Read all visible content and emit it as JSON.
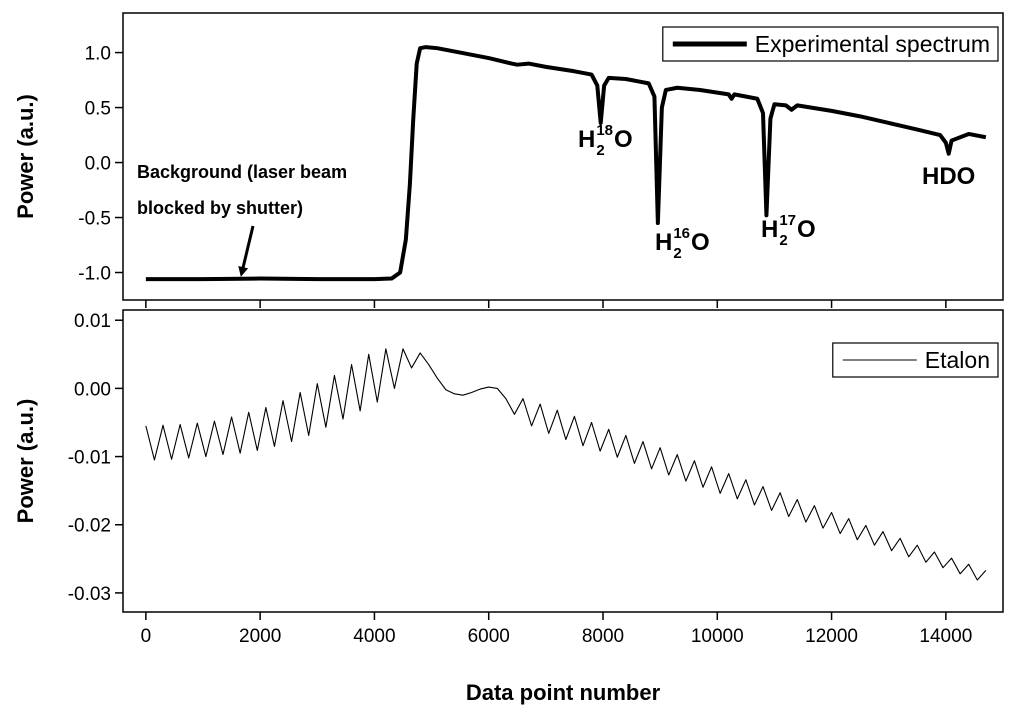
{
  "chart_data": [
    {
      "type": "line",
      "ylabel": "Power (a.u.)",
      "x": [
        0,
        1000,
        2000,
        3000,
        4000,
        4300,
        4450,
        4550,
        4620,
        4680,
        4740,
        4800,
        4900,
        5100,
        5500,
        6000,
        6400,
        6500,
        6700,
        7000,
        7500,
        7800,
        7900,
        7960,
        8020,
        8100,
        8400,
        8800,
        8900,
        8960,
        9030,
        9100,
        9300,
        9700,
        10200,
        10250,
        10300,
        10700,
        10800,
        10860,
        10930,
        11000,
        11200,
        11300,
        11400,
        12000,
        12500,
        13000,
        13500,
        13900,
        14000,
        14050,
        14100,
        14400,
        14700
      ],
      "series": [
        {
          "name": "Experimental spectrum",
          "color": "#000000",
          "values": [
            -1.06,
            -1.06,
            -1.055,
            -1.06,
            -1.06,
            -1.055,
            -1.0,
            -0.7,
            -0.2,
            0.4,
            0.9,
            1.04,
            1.05,
            1.04,
            1.0,
            0.95,
            0.9,
            0.89,
            0.9,
            0.87,
            0.83,
            0.8,
            0.7,
            0.36,
            0.7,
            0.77,
            0.76,
            0.72,
            0.6,
            -0.55,
            0.5,
            0.66,
            0.68,
            0.66,
            0.62,
            0.58,
            0.62,
            0.58,
            0.45,
            -0.48,
            0.4,
            0.53,
            0.52,
            0.48,
            0.52,
            0.47,
            0.42,
            0.36,
            0.3,
            0.25,
            0.18,
            0.08,
            0.2,
            0.26,
            0.23
          ]
        }
      ],
      "xlim": [
        -400,
        15000
      ],
      "ylim": [
        -1.25,
        1.36
      ],
      "yticks": [
        {
          "value": -1.0,
          "label": "-1.0"
        },
        -0.5,
        {
          "value": 0,
          "label": "0.0"
        },
        0.5,
        {
          "value": 1.0,
          "label": "1.0"
        }
      ],
      "legend": "upper right",
      "annotations": [
        {
          "lines": [
            "Background (laser beam",
            "blocked by shutter)"
          ]
        },
        {
          "parts": [
            "H",
            "2",
            "18",
            "O"
          ]
        },
        {
          "parts": [
            "H",
            "2",
            "16",
            "O"
          ]
        },
        {
          "parts": [
            "H",
            "2",
            "17",
            "O"
          ]
        },
        {
          "parts": [
            "HDO"
          ]
        }
      ]
    },
    {
      "type": "line",
      "ylabel": "Power (a.u.)",
      "xlabel": "Data point number",
      "x": [
        0,
        150,
        300,
        450,
        600,
        750,
        900,
        1050,
        1200,
        1350,
        1500,
        1650,
        1800,
        1950,
        2100,
        2250,
        2400,
        2550,
        2700,
        2850,
        3000,
        3150,
        3300,
        3450,
        3600,
        3750,
        3900,
        4050,
        4200,
        4350,
        4500,
        4650,
        4800,
        4950,
        5100,
        5250,
        5400,
        5550,
        5700,
        5850,
        6000,
        6150,
        6300,
        6450,
        6600,
        6750,
        6900,
        7050,
        7200,
        7350,
        7500,
        7650,
        7800,
        7950,
        8100,
        8250,
        8400,
        8550,
        8700,
        8850,
        9000,
        9150,
        9300,
        9450,
        9600,
        9750,
        9900,
        10050,
        10200,
        10350,
        10500,
        10650,
        10800,
        10950,
        11100,
        11250,
        11400,
        11550,
        11700,
        11850,
        12000,
        12150,
        12300,
        12450,
        12600,
        12750,
        12900,
        13050,
        13200,
        13350,
        13500,
        13650,
        13800,
        13950,
        14100,
        14250,
        14400,
        14550,
        14700
      ],
      "series": [
        {
          "name": "Etalon",
          "color": "#000000",
          "values": [
            -0.0055,
            -0.0105,
            -0.0054,
            -0.0104,
            -0.0053,
            -0.0102,
            -0.0051,
            -0.01,
            -0.0048,
            -0.0097,
            -0.0042,
            -0.0095,
            -0.0035,
            -0.0091,
            -0.0028,
            -0.0085,
            -0.0018,
            -0.0078,
            -0.0006,
            -0.0069,
            0.0007,
            -0.0057,
            0.0019,
            -0.0045,
            0.0035,
            -0.0033,
            0.005,
            -0.002,
            0.0058,
            0.0,
            0.0058,
            0.003,
            0.0052,
            0.0035,
            0.0015,
            -0.0002,
            -0.0008,
            -0.001,
            -0.0006,
            -0.0001,
            0.0002,
            0.0,
            -0.0015,
            -0.0038,
            -0.0015,
            -0.0055,
            -0.0023,
            -0.0066,
            -0.0032,
            -0.0075,
            -0.0041,
            -0.0084,
            -0.005,
            -0.0092,
            -0.006,
            -0.0101,
            -0.0069,
            -0.011,
            -0.0078,
            -0.0118,
            -0.0087,
            -0.0127,
            -0.0097,
            -0.0136,
            -0.0106,
            -0.0145,
            -0.0115,
            -0.0154,
            -0.0125,
            -0.0162,
            -0.0134,
            -0.0171,
            -0.0144,
            -0.0179,
            -0.0153,
            -0.0188,
            -0.0163,
            -0.0196,
            -0.0172,
            -0.0205,
            -0.0182,
            -0.0213,
            -0.0191,
            -0.0222,
            -0.0201,
            -0.023,
            -0.021,
            -0.0238,
            -0.022,
            -0.0247,
            -0.023,
            -0.0255,
            -0.024,
            -0.0263,
            -0.0249,
            -0.0272,
            -0.0258,
            -0.0281,
            -0.0267
          ]
        }
      ],
      "xlim": [
        -400,
        15000
      ],
      "xticks": [
        0,
        2000,
        4000,
        6000,
        8000,
        10000,
        12000,
        14000
      ],
      "ylim": [
        -0.0328,
        0.0115
      ],
      "yticks": [
        -0.03,
        -0.02,
        -0.01,
        {
          "value": 0,
          "label": "0.00"
        },
        0.01
      ],
      "legend": "upper right"
    }
  ]
}
